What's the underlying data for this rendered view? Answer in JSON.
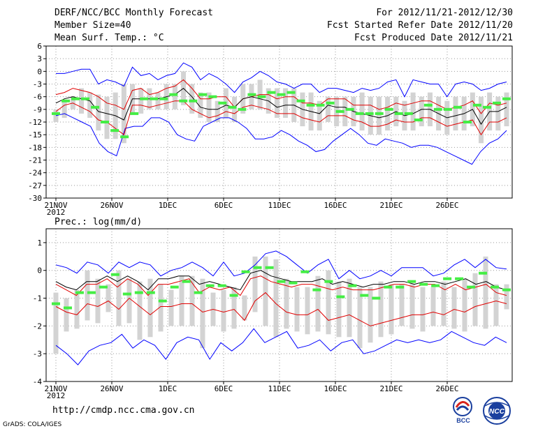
{
  "header": {
    "title": "DERF/NCC/BCC Monthly Forecast",
    "member_size": "Member Size=40",
    "variable": "Mean Surf. Temp.: °C",
    "forecast_period": "For 2012/11/21-2012/12/30",
    "started_date": "Fcst Started Refer Date 2012/11/20",
    "produced_date": "Fcst Produced Date 2012/11/21"
  },
  "footer": {
    "url": "http://cmdp.ncc.cma.gov.cn",
    "credit": "GrADS: COLA/IGES"
  },
  "logos": {
    "bcc": "BCC",
    "ncc": "NCC"
  },
  "colors": {
    "envelope": "#0000ff",
    "spread": "#e00000",
    "mean": "#000000",
    "box": "#d3d3d3",
    "observed": "#44ee44",
    "grid": "#999999"
  },
  "chart_data": [
    {
      "type": "line",
      "title": "Mean Surf. Temp.: °C",
      "x_tick_labels": [
        "21NOV",
        "26NOV",
        "1DEC",
        "6DEC",
        "11DEC",
        "16DEC",
        "21DEC",
        "26DEC"
      ],
      "x_year_label": "2012",
      "x_days": 40,
      "ylim": [
        -30,
        6
      ],
      "yticks": [
        6,
        3,
        0,
        -3,
        -6,
        -9,
        -12,
        -15,
        -18,
        -21,
        -24,
        -27,
        -30
      ],
      "series": [
        {
          "name": "max",
          "values": [
            -0.5,
            -0.5,
            0,
            0.5,
            0.5,
            -3,
            -2,
            -2.5,
            -3.5,
            1,
            -1,
            -0.5,
            -2,
            -1,
            -0.5,
            2,
            1,
            -2,
            -0.5,
            -1.5,
            -3,
            -5,
            -2.5,
            -1.5,
            0,
            -1,
            -2.5,
            -3,
            -4,
            -3,
            -3,
            -5,
            -4,
            -4,
            -4.5,
            -5,
            -4,
            -4.5,
            -4,
            -2.5,
            -2,
            -6,
            -2,
            -2.5,
            -3,
            -3,
            -6,
            -3,
            -2.5,
            -3,
            -4.5,
            -4,
            -3,
            -2.5
          ]
        },
        {
          "name": "upper",
          "values": [
            -5.5,
            -5,
            -4,
            -4.5,
            -5,
            -6,
            -7.5,
            -8,
            -9,
            -4.5,
            -4,
            -5.5,
            -5,
            -4,
            -3.5,
            -2,
            -4,
            -6.5,
            -6.5,
            -6,
            -6,
            -8.5,
            -6.5,
            -6,
            -5.5,
            -5.5,
            -6.5,
            -6,
            -6,
            -7.5,
            -7.5,
            -8,
            -6.5,
            -6.5,
            -6.5,
            -8,
            -8,
            -8,
            -9,
            -8.5,
            -7.5,
            -8,
            -7.5,
            -7,
            -7,
            -8,
            -9,
            -8.5,
            -8,
            -7,
            -10,
            -7.5,
            -8,
            -7.5
          ]
        },
        {
          "name": "mean",
          "values": [
            -7.5,
            -6.5,
            -6,
            -6.5,
            -7,
            -9.5,
            -10,
            -10.5,
            -11.5,
            -6.5,
            -6.5,
            -6.5,
            -6.5,
            -6,
            -5.5,
            -4,
            -6,
            -8.5,
            -9,
            -9,
            -8,
            -8.5,
            -6.5,
            -6,
            -6.5,
            -7,
            -8.5,
            -8,
            -8,
            -9,
            -9.5,
            -10,
            -8,
            -8.5,
            -8.5,
            -9.5,
            -10,
            -10.5,
            -11,
            -10.5,
            -9.5,
            -10.5,
            -10,
            -9,
            -9,
            -10,
            -11,
            -10.5,
            -10,
            -9,
            -12.5,
            -9.5,
            -9.5,
            -8.5
          ]
        },
        {
          "name": "lower",
          "values": [
            -9.5,
            -8,
            -7.5,
            -8.5,
            -9.5,
            -11.5,
            -12,
            -13.5,
            -15,
            -8,
            -8,
            -8.5,
            -8,
            -7.5,
            -7,
            -7,
            -9,
            -10,
            -11,
            -10.5,
            -9.5,
            -10,
            -8.5,
            -8,
            -8.5,
            -9,
            -10,
            -10,
            -10,
            -11,
            -11.5,
            -12,
            -10.5,
            -10.5,
            -10.5,
            -11.5,
            -12,
            -13,
            -13,
            -12.5,
            -11.5,
            -12,
            -12,
            -11,
            -11,
            -12,
            -13,
            -12.5,
            -12,
            -11.5,
            -15,
            -12,
            -12,
            -11
          ]
        },
        {
          "name": "min",
          "values": [
            -10.5,
            -10,
            -11,
            -12,
            -13,
            -17,
            -19,
            -20,
            -13.5,
            -13,
            -13,
            -11,
            -11,
            -12,
            -15,
            -16,
            -16.5,
            -13,
            -12,
            -11,
            -11,
            -12,
            -13.5,
            -16,
            -16,
            -15.5,
            -14,
            -15,
            -16.5,
            -17.5,
            -19,
            -18.5,
            -16.5,
            -15,
            -13.5,
            -15,
            -17,
            -17.5,
            -16,
            -16.5,
            -17,
            -18,
            -17.5,
            -17.5,
            -18,
            -19,
            -20,
            -21,
            -22,
            -19,
            -17,
            -16,
            -14
          ]
        },
        {
          "name": "box_high",
          "values": [
            -9,
            -7,
            -6,
            -4,
            -5,
            -5.5,
            -6,
            -5,
            -3,
            -3,
            -4,
            -4,
            -5,
            -3,
            -3,
            0,
            -3,
            -5,
            -5,
            -7,
            -4,
            -6,
            -3,
            -3,
            -2,
            -4,
            -4,
            -4,
            -4,
            -5,
            -5,
            -7,
            -6,
            -6,
            -6,
            -6,
            -5,
            -6,
            -6,
            -6,
            -6,
            -7,
            -5,
            -6,
            -5,
            -6,
            -7,
            -6,
            -6,
            -5,
            -6,
            -5,
            -6,
            -5
          ]
        },
        {
          "name": "box_low",
          "values": [
            -12,
            -11,
            -9,
            -10,
            -11,
            -14,
            -16,
            -16,
            -17,
            -10,
            -10,
            -9,
            -9,
            -9,
            -9,
            -8,
            -10,
            -11,
            -12,
            -12,
            -11,
            -12,
            -10,
            -9,
            -9,
            -10,
            -11,
            -11,
            -12,
            -13,
            -14,
            -14,
            -12,
            -13,
            -13,
            -13,
            -14,
            -15,
            -15,
            -14,
            -13,
            -14,
            -14,
            -13,
            -13,
            -14,
            -15,
            -14,
            -14,
            -13,
            -17,
            -14,
            -14,
            -13
          ]
        },
        {
          "name": "observed",
          "values": [
            -10,
            -7,
            -6.5,
            -6.5,
            -8.5,
            -12,
            -14,
            -15.5,
            -10,
            -6.5,
            -6.5,
            -6.5,
            -5.5,
            -7,
            -7,
            -5.5,
            -6,
            -7.5,
            -8.5,
            -9,
            -5.5,
            -6,
            -5,
            -5.5,
            -5,
            -7,
            -8,
            -8,
            -7.5,
            -9.5,
            -9,
            -10,
            -10,
            -10,
            -9,
            -10,
            -10,
            -11.5,
            -8,
            -9,
            -9,
            -8.5,
            -12,
            -8,
            -8.5,
            -7.5,
            -6.5
          ]
        }
      ]
    },
    {
      "type": "line",
      "title": "Prec.: log(mm/d)",
      "x_tick_labels": [
        "21NOV",
        "26NOV",
        "1DEC",
        "6DEC",
        "11DEC",
        "16DEC",
        "21DEC",
        "26DEC"
      ],
      "x_year_label": "2012",
      "x_days": 40,
      "ylim": [
        -4,
        1.5
      ],
      "yticks": [
        1,
        0,
        -1,
        -2,
        -3,
        -4
      ],
      "series": [
        {
          "name": "max",
          "values": [
            0.2,
            0.1,
            -0.1,
            0.3,
            0.2,
            -0.1,
            0.3,
            0.1,
            0.3,
            0.2,
            -0.2,
            0,
            0.1,
            0.3,
            0.1,
            -0.2,
            0.3,
            -0.2,
            -0.1,
            0.2,
            0.6,
            0.7,
            0.5,
            0.2,
            -0.1,
            0.2,
            0.4,
            -0.3,
            0,
            -0.3,
            -0.2,
            0,
            -0.2,
            0.1,
            0.1,
            0.1,
            -0.2,
            -0.1,
            0.2,
            0.4,
            0.1,
            0.4,
            0.1,
            0.05
          ]
        },
        {
          "name": "upper",
          "values": [
            -0.5,
            -0.7,
            -0.9,
            -0.5,
            -0.5,
            -0.3,
            -0.6,
            -0.3,
            -0.5,
            -0.9,
            -0.5,
            -0.5,
            -0.4,
            -0.3,
            -0.8,
            -0.6,
            -0.7,
            -0.6,
            -0.9,
            -0.3,
            -0.2,
            -0.4,
            -0.5,
            -0.6,
            -0.5,
            -0.5,
            -0.6,
            -0.7,
            -0.6,
            -0.7,
            -0.7,
            -0.7,
            -0.6,
            -0.5,
            -0.5,
            -0.6,
            -0.5,
            -0.5,
            -0.7,
            -0.5,
            -0.7,
            -0.6,
            -0.5,
            -0.8,
            -0.9
          ]
        },
        {
          "name": "mean",
          "values": [
            -0.4,
            -0.6,
            -0.7,
            -0.4,
            -0.4,
            -0.2,
            -0.4,
            -0.2,
            -0.4,
            -0.7,
            -0.3,
            -0.3,
            -0.2,
            -0.2,
            -0.5,
            -0.4,
            -0.5,
            -0.6,
            -0.7,
            -0.1,
            0,
            -0.2,
            -0.3,
            -0.4,
            -0.4,
            -0.4,
            -0.3,
            -0.5,
            -0.4,
            -0.5,
            -0.6,
            -0.5,
            -0.5,
            -0.4,
            -0.4,
            -0.5,
            -0.4,
            -0.4,
            -0.5,
            -0.4,
            -0.3,
            -0.5,
            -0.4,
            -0.6,
            -0.7
          ]
        },
        {
          "name": "lower",
          "values": [
            -1.3,
            -1.5,
            -1.6,
            -1.2,
            -1.3,
            -1.1,
            -1.4,
            -1.0,
            -1.3,
            -1.6,
            -1.3,
            -1.3,
            -1.2,
            -1.2,
            -1.5,
            -1.4,
            -1.5,
            -1.4,
            -1.8,
            -1.1,
            -0.8,
            -1.2,
            -1.5,
            -1.6,
            -1.6,
            -1.4,
            -1.8,
            -1.7,
            -1.6,
            -1.8,
            -2,
            -1.9,
            -1.8,
            -1.7,
            -1.6,
            -1.6,
            -1.5,
            -1.6,
            -1.4,
            -1.5,
            -1.3,
            -1.2,
            -1.1,
            -1.2
          ]
        },
        {
          "name": "min",
          "values": [
            -2.7,
            -3,
            -3.4,
            -2.9,
            -2.7,
            -2.6,
            -2.3,
            -2.8,
            -2.5,
            -2.7,
            -3.2,
            -2.6,
            -2.4,
            -2.5,
            -3.2,
            -2.6,
            -2.9,
            -2.6,
            -2.1,
            -2.6,
            -2.4,
            -2.2,
            -2.8,
            -2.7,
            -2.5,
            -2.9,
            -2.6,
            -2.5,
            -3,
            -2.9,
            -2.7,
            -2.5,
            -2.6,
            -2.5,
            -2.6,
            -2.5,
            -2.2,
            -2.4,
            -2.6,
            -2.7,
            -2.4,
            -2.6
          ]
        },
        {
          "name": "box_high",
          "values": [
            -0.8,
            -1,
            -0.7,
            0,
            -0.3,
            -0.5,
            0,
            -0.3,
            -0.4,
            -0.3,
            -0.5,
            -0.7,
            -0.2,
            -0.2,
            -0.3,
            -0.8,
            -0.7,
            -0.6,
            -0.9,
            0.5,
            0.5,
            0.4,
            -0.3,
            -0.6,
            -0.6,
            -0.2,
            0,
            -0.4,
            -0.3,
            -0.6,
            -0.6,
            -0.4,
            -0.5,
            -0.5,
            -0.5,
            -0.6,
            -0.6,
            -0.4,
            -0.6,
            -0.3,
            -0.1,
            0.5,
            -0.5,
            -0.5
          ]
        },
        {
          "name": "box_low",
          "values": [
            -3,
            -2.2,
            -2.1,
            -1.8,
            -1.9,
            -1.5,
            -2,
            -1.9,
            -2.5,
            -2.4,
            -2.2,
            -2,
            -2,
            -2,
            -2.8,
            -2,
            -2.2,
            -2.1,
            -1.8,
            -1.5,
            -2,
            -2.4,
            -2.1,
            -2.2,
            -2.3,
            -2.2,
            -2.3,
            -2.4,
            -2.4,
            -2.8,
            -2.6,
            -2.4,
            -2.3,
            -2,
            -2.1,
            -2.2,
            -2,
            -2,
            -2.1,
            -2.2,
            -2,
            -2.1,
            -2,
            -1.4
          ]
        },
        {
          "name": "observed",
          "values": [
            -1.2,
            -1.35,
            -0.8,
            -0.8,
            -0.6,
            -0.15,
            -0.85,
            -0.8,
            -0.8,
            -1.1,
            -0.6,
            -0.4,
            -0.8,
            -0.55,
            -0.55,
            -0.9,
            -0.05,
            0.1,
            0.1,
            -0.4,
            -0.45,
            -0.05,
            -0.7,
            -0.4,
            -0.95,
            -0.55,
            -0.9,
            -1.0,
            -0.6,
            -0.6,
            -0.4,
            -0.5,
            -0.55,
            -0.3,
            -0.3,
            -0.6,
            -0.1,
            -0.6,
            -0.7
          ]
        }
      ]
    }
  ]
}
